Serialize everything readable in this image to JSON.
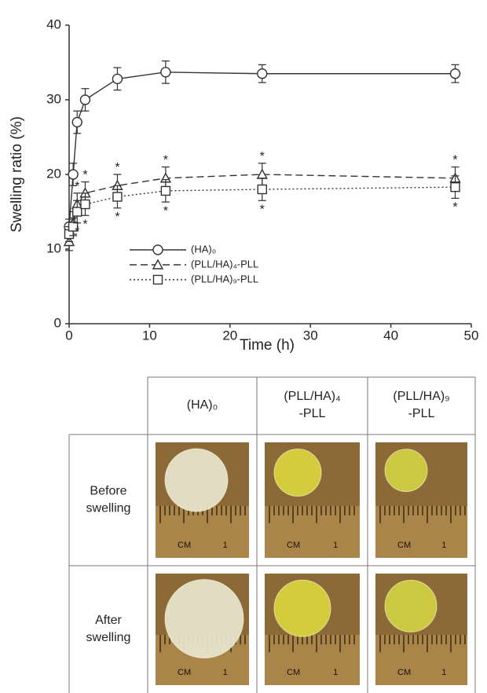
{
  "chart_data": {
    "type": "line",
    "xlabel": "Time (h)",
    "ylabel": "Swelling ratio (%)",
    "x": [
      0,
      0.5,
      1,
      2,
      6,
      12,
      24,
      48
    ],
    "series": [
      {
        "name": "(HA)₀",
        "color": "#333333",
        "dash": "solid",
        "marker": "circle",
        "values": [
          13,
          20,
          27,
          30,
          32.8,
          33.7,
          33.5,
          33.5
        ],
        "errors": [
          1,
          1.5,
          1.5,
          1.5,
          1.5,
          1.5,
          1.2,
          1.2
        ]
      },
      {
        "name": "(PLL/HA)₄-PLL",
        "color": "#333333",
        "dash": "dashed",
        "marker": "triangle",
        "values": [
          11,
          13.5,
          16,
          17.5,
          18.5,
          19.5,
          20,
          19.5
        ],
        "errors": [
          1.2,
          1.5,
          1.5,
          1.5,
          1.5,
          1.5,
          1.5,
          1.5
        ]
      },
      {
        "name": "(PLL/HA)₉-PLL",
        "color": "#333333",
        "dash": "dotted",
        "marker": "square",
        "values": [
          12,
          13,
          15,
          16,
          17,
          17.8,
          18,
          18.3
        ],
        "errors": [
          1,
          1.2,
          1.5,
          1.5,
          1.5,
          1.5,
          1.5,
          1.5
        ]
      }
    ],
    "significance_label": "*",
    "xlim": [
      0,
      50
    ],
    "xticks": [
      0,
      10,
      20,
      30,
      40,
      50
    ],
    "ylim": [
      0,
      40
    ],
    "yticks": [
      0,
      10,
      20,
      30,
      40
    ],
    "legend": "center-left"
  },
  "table": {
    "header": [
      [
        "(HA)₀"
      ],
      [
        "(PLL/HA)₄",
        "-PLL"
      ],
      [
        "(PLL/HA)₉",
        "-PLL"
      ]
    ],
    "rows": [
      [
        "Before",
        "swelling"
      ],
      [
        "After",
        "swelling"
      ]
    ],
    "ruler_labels": [
      "CM",
      "1"
    ]
  }
}
